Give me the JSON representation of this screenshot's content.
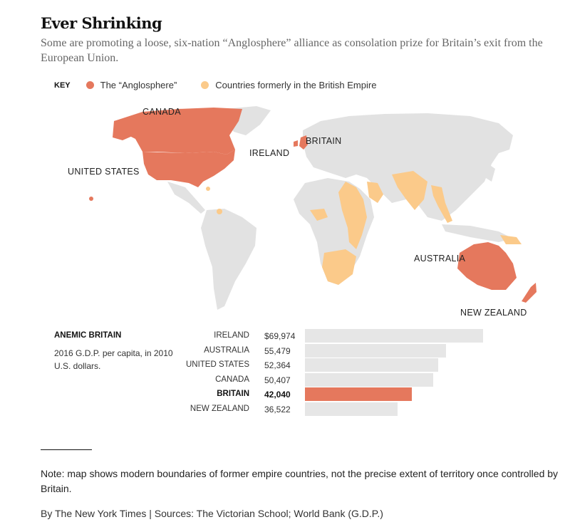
{
  "title": "Ever Shrinking",
  "subtitle": "Some are promoting a loose, six-nation “Anglosphere” alliance as consolation prize for Britain’s exit from the European Union.",
  "key": {
    "label": "KEY",
    "items": [
      {
        "label": "The “Anglosphere”",
        "color": "#e5785d"
      },
      {
        "label": "Countries formerly in the British Empire",
        "color": "#fbca8a"
      }
    ]
  },
  "colors": {
    "anglosphere": "#e5785d",
    "former_empire": "#fbca8a",
    "land": "#e2e2e2",
    "bar": "#e6e6e6"
  },
  "map_labels": {
    "canada": "CANADA",
    "united_states": "UNITED STATES",
    "ireland": "IRELAND",
    "britain": "BRITAIN",
    "australia": "AUSTRALIA",
    "new_zealand": "NEW ZEALAND"
  },
  "bar_chart": {
    "title": "ANEMIC BRITAIN",
    "description": "2016 G.D.P. per capita, in 2010 U.S. dollars.",
    "highlight": "BRITAIN",
    "max": 69974
  },
  "chart_data": {
    "type": "bar",
    "title": "ANEMIC BRITAIN",
    "categories": [
      "IRELAND",
      "AUSTRALIA",
      "UNITED STATES",
      "CANADA",
      "BRITAIN",
      "NEW ZEALAND"
    ],
    "values": [
      69974,
      55479,
      52364,
      50407,
      42040,
      36522
    ],
    "labels": [
      "$69,974",
      "55,479",
      "52,364",
      "50,407",
      "42,040",
      "36,522"
    ]
  },
  "note": "Note: map shows modern boundaries of former empire countries, not the precise extent of territory once controlled by Britain.",
  "credit": "By The New York Times | Sources: The Victorian School; World Bank (G.D.P.)"
}
